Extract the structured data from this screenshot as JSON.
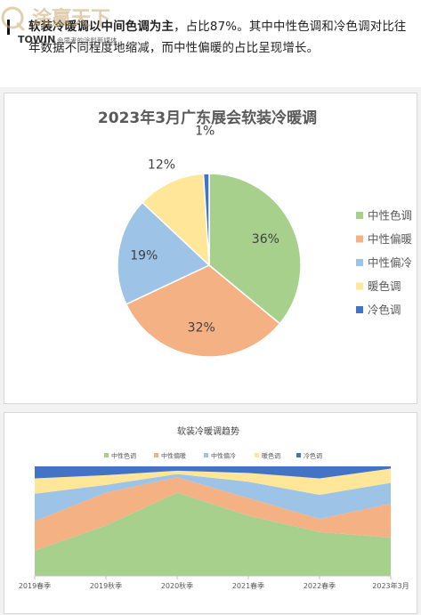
{
  "intro": {
    "bold": "软装冷暖调以中间色调为主",
    "rest": "，占比87%。其中中性色调和冷色调对比往年数据不同程度地缩减，而中性偏暖的占比呈现增长。"
  },
  "colors": {
    "neutral": "#a8d08d",
    "warm_neutral": "#f4b183",
    "cool_neutral": "#9dc3e6",
    "warm": "#ffe699",
    "cool": "#4472c4"
  },
  "chart_data": [
    {
      "type": "pie",
      "title": "2023年3月广东展会软装冷暖调",
      "labels": [
        "中性色调",
        "中性偏暖",
        "中性偏冷",
        "暖色调",
        "冷色调"
      ],
      "values": [
        36,
        32,
        19,
        12,
        1
      ],
      "data_labels": [
        "36%",
        "32%",
        "19%",
        "12%",
        "1%"
      ],
      "legend": "right"
    },
    {
      "type": "area",
      "stacked": "100%",
      "title": "软装冷暖调趋势",
      "categories": [
        "2019春季",
        "2019秋季",
        "2020秋季",
        "2021春季",
        "2022春季",
        "2023年3月"
      ],
      "series": [
        {
          "name": "中性色调",
          "values": [
            23,
            46,
            76,
            55,
            40,
            35
          ]
        },
        {
          "name": "中性偏暖",
          "values": [
            27,
            30,
            14,
            16,
            12,
            31
          ]
        },
        {
          "name": "中性偏冷",
          "values": [
            25,
            7,
            3,
            15,
            22,
            19
          ]
        },
        {
          "name": "暖色调",
          "values": [
            14,
            9,
            3,
            8,
            15,
            13
          ]
        },
        {
          "name": "冷色调",
          "values": [
            11,
            8,
            4,
            6,
            11,
            2
          ]
        }
      ],
      "ylim": [
        0,
        100
      ],
      "legend": "top"
    }
  ],
  "watermark": {
    "logo_text": "涂赢天下",
    "brand": "TOWIN",
    "slogan": "会思考的涂料新媒体"
  }
}
